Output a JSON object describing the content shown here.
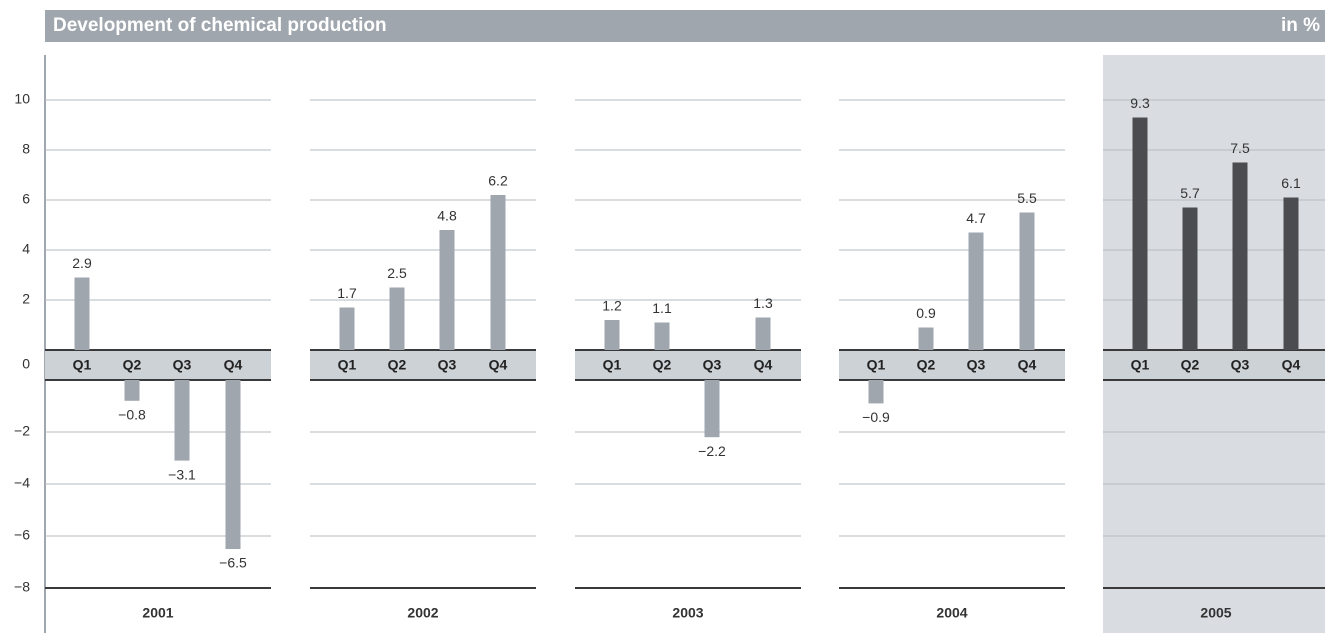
{
  "chart_data": {
    "type": "bar",
    "title": "Development of chemical production",
    "unit": "in %",
    "quarters": [
      "Q1",
      "Q2",
      "Q3",
      "Q4"
    ],
    "groups": [
      {
        "label": "2001",
        "color": "#9fa6ad",
        "values": [
          2.9,
          -0.8,
          -3.1,
          -6.5
        ],
        "value_labels": [
          "2.9",
          "−0.8",
          "−3.1",
          "−6.5"
        ]
      },
      {
        "label": "2002",
        "color": "#9fa6ad",
        "values": [
          1.7,
          2.5,
          4.8,
          6.2
        ],
        "value_labels": [
          "1.7",
          "2.5",
          "4.8",
          "6.2"
        ]
      },
      {
        "label": "2003",
        "color": "#9fa6ad",
        "values": [
          1.2,
          1.1,
          -2.2,
          1.3
        ],
        "value_labels": [
          "1.2",
          "1.1",
          "−2.2",
          "1.3"
        ]
      },
      {
        "label": "2004",
        "color": "#9fa6ad",
        "values": [
          -0.9,
          0.9,
          4.7,
          5.5
        ],
        "value_labels": [
          "−0.9",
          "0.9",
          "4.7",
          "5.5"
        ]
      },
      {
        "label": "2005",
        "color": "#4b4c4f",
        "highlight": true,
        "values": [
          9.3,
          5.7,
          7.5,
          6.1
        ],
        "value_labels": [
          "9.3",
          "5.7",
          "7.5",
          "6.1"
        ]
      }
    ],
    "ylim": [
      -8,
      10
    ],
    "yticks": [
      10,
      8,
      6,
      4,
      2,
      0,
      {
        "value": -2,
        "label": "−2"
      },
      {
        "value": -4,
        "label": "−4"
      },
      {
        "value": -6,
        "label": "−6"
      },
      {
        "value": -8,
        "label": "−8"
      }
    ],
    "grid": true
  }
}
